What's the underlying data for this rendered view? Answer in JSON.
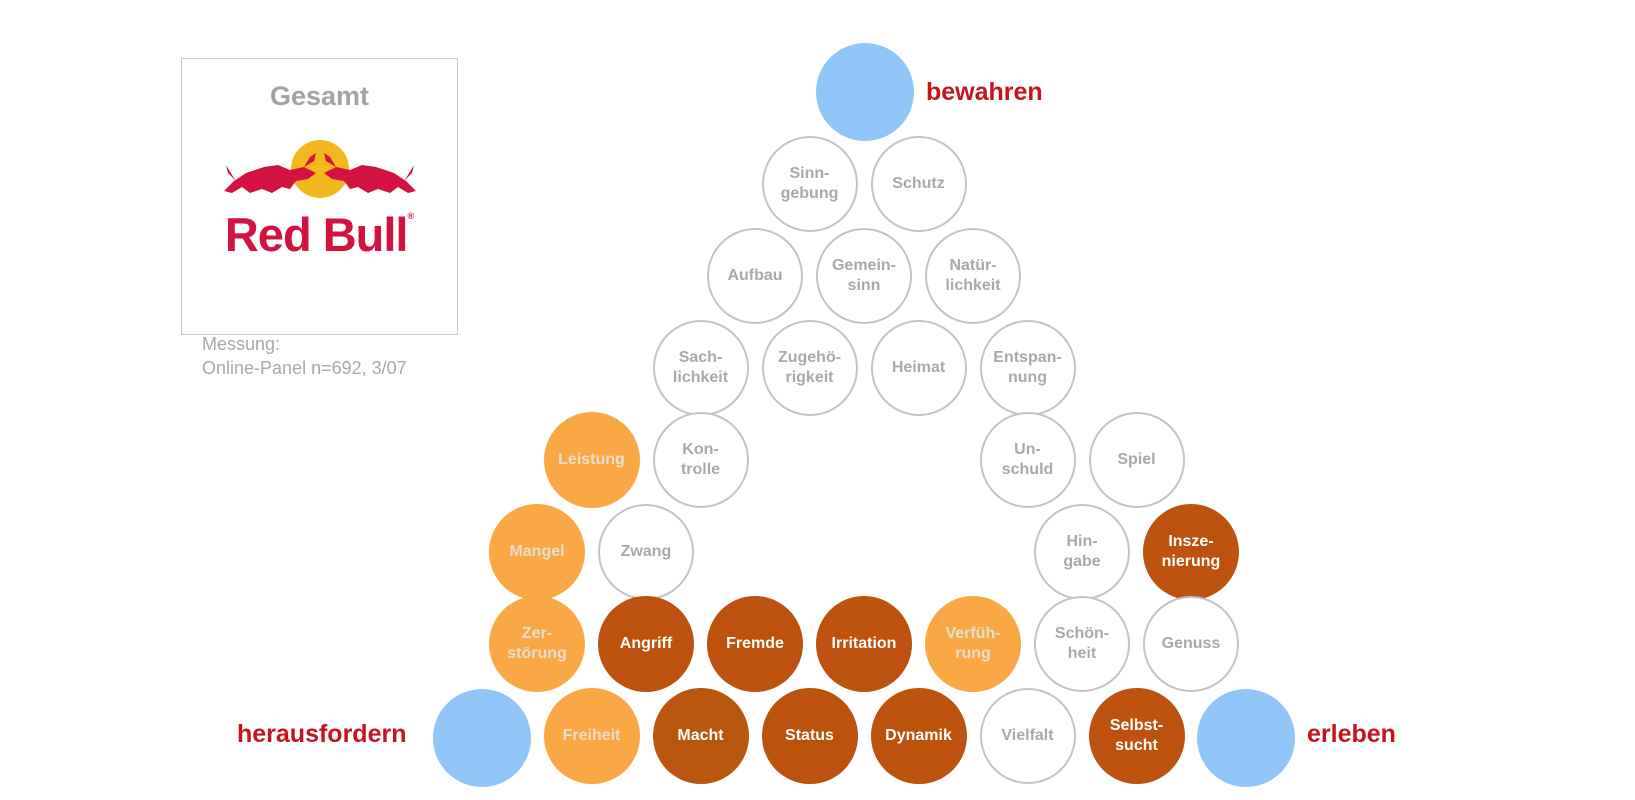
{
  "logo_panel": {
    "title": "Gesamt",
    "brand": "Red Bull",
    "trademark": "®",
    "measurement_label": "Messung:",
    "measurement_detail": "Online-Panel n=692, 3/07"
  },
  "poles": {
    "top": "bewahren",
    "left": "herausfordern",
    "right": "erleben"
  },
  "colors": {
    "pole_fill": "#8fc7f9",
    "pole_text": "#c4141e",
    "light_fill": "#f9a845",
    "dark_fill": "#bc520e",
    "neutral_border": "#c3c3c3",
    "neutral_text": "#a9a9a9",
    "brand_red": "#d3123f",
    "brand_sun": "#f2b81e"
  },
  "diagram": {
    "rows": [
      [
        {
          "label": "Sinn-\ngebung",
          "style": "neutral"
        },
        {
          "label": "Schutz",
          "style": "neutral"
        }
      ],
      [
        {
          "label": "Aufbau",
          "style": "neutral"
        },
        {
          "label": "Gemein-\nsinn",
          "style": "neutral"
        },
        {
          "label": "Natür-\nlichkeit",
          "style": "neutral"
        }
      ],
      [
        {
          "label": "Sach-\nlichkeit",
          "style": "neutral"
        },
        {
          "label": "Zugehö-\nrigkeit",
          "style": "neutral"
        },
        {
          "label": "Heimat",
          "style": "neutral"
        },
        {
          "label": "Entspan-\nnung",
          "style": "neutral"
        }
      ],
      [
        {
          "label": "Leistung",
          "style": "light"
        },
        {
          "label": "Kon-\ntrolle",
          "style": "neutral"
        },
        null,
        null,
        {
          "label": "Un-\nschuld",
          "style": "neutral"
        },
        {
          "label": "Spiel",
          "style": "neutral"
        }
      ],
      [
        {
          "label": "Mangel",
          "style": "light"
        },
        {
          "label": "Zwang",
          "style": "neutral"
        },
        null,
        null,
        null,
        {
          "label": "Hin-\ngabe",
          "style": "neutral"
        },
        {
          "label": "Insze-\nnierung",
          "style": "dark"
        }
      ],
      [
        {
          "label": "Zer-\nstörung",
          "style": "light"
        },
        {
          "label": "Angriff",
          "style": "dark"
        },
        {
          "label": "Fremde",
          "style": "dark"
        },
        {
          "label": "Irritation",
          "style": "dark"
        },
        {
          "label": "Verfüh-\nrung",
          "style": "light"
        },
        {
          "label": "Schön-\nheit",
          "style": "neutral"
        },
        {
          "label": "Genuss",
          "style": "neutral"
        }
      ],
      [
        {
          "label": "Freiheit",
          "style": "light"
        },
        {
          "label": "Macht",
          "style": "dark2"
        },
        {
          "label": "Status",
          "style": "dark"
        },
        {
          "label": "Dynamik",
          "style": "dark"
        },
        {
          "label": "Vielfalt",
          "style": "neutral"
        },
        {
          "label": "Selbst-\nsucht",
          "style": "dark"
        }
      ]
    ]
  }
}
